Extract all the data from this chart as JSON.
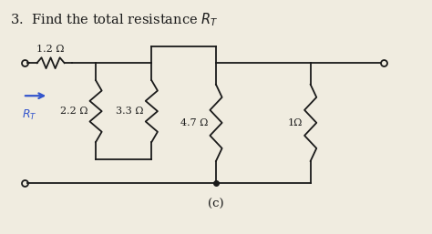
{
  "title": "3.  Find the total resistance $R_T$",
  "subtitle_c": "(c)",
  "bg_color": "#f0ece0",
  "line_color": "#1a1a1a",
  "arrow_color": "#3355cc",
  "rt_label": "$R_T$",
  "series_resistor_label": "1.2 Ω",
  "parallel_labels": [
    "2.2 Ω",
    "3.3 Ω",
    "4.7 Ω",
    "1Ω"
  ],
  "figsize": [
    4.74,
    2.57
  ],
  "dpi": 100
}
